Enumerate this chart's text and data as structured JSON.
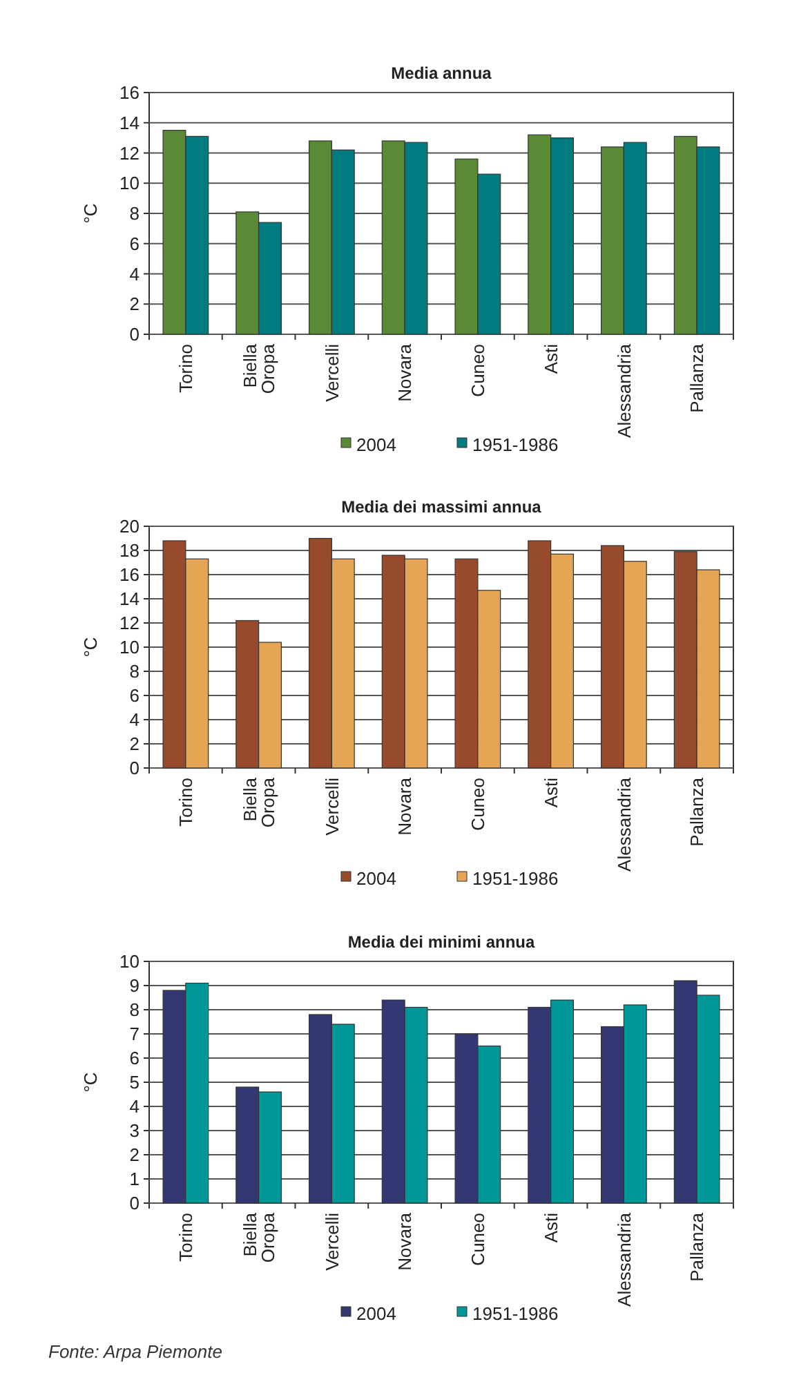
{
  "chart_data": [
    {
      "type": "bar",
      "title": "Media annua",
      "ylabel": "°C",
      "categories": [
        "Torino",
        "Biella\nOropa",
        "Vercelli",
        "Novara",
        "Cuneo",
        "Asti",
        "Alessandria",
        "Pallanza"
      ],
      "ylim": [
        0,
        16
      ],
      "yticks": [
        0,
        2,
        4,
        6,
        8,
        10,
        12,
        14,
        16
      ],
      "grid": "y",
      "legend": "bottom",
      "series": [
        {
          "name": "2004",
          "color": "#5a8a35",
          "values": [
            13.5,
            8.1,
            12.8,
            12.8,
            11.6,
            13.2,
            12.4,
            13.1
          ]
        },
        {
          "name": "1951-1986",
          "color": "#007b80",
          "values": [
            13.1,
            7.4,
            12.2,
            12.7,
            10.6,
            13.0,
            12.7,
            12.4
          ]
        }
      ]
    },
    {
      "type": "bar",
      "title": "Media dei massimi annua",
      "ylabel": "°C",
      "categories": [
        "Torino",
        "Biella\nOropa",
        "Vercelli",
        "Novara",
        "Cuneo",
        "Asti",
        "Alessandria",
        "Pallanza"
      ],
      "ylim": [
        0,
        20
      ],
      "yticks": [
        0,
        2,
        4,
        6,
        8,
        10,
        12,
        14,
        16,
        18,
        20
      ],
      "grid": "y",
      "legend": "bottom",
      "series": [
        {
          "name": "2004",
          "color": "#984b2c",
          "values": [
            18.8,
            12.2,
            19.0,
            17.6,
            17.3,
            18.8,
            18.4,
            17.9
          ]
        },
        {
          "name": "1951-1986",
          "color": "#e6a554",
          "values": [
            17.3,
            10.4,
            17.3,
            17.3,
            14.7,
            17.7,
            17.1,
            16.4
          ]
        }
      ]
    },
    {
      "type": "bar",
      "title": "Media dei minimi annua",
      "ylabel": "°C",
      "categories": [
        "Torino",
        "Biella\nOropa",
        "Vercelli",
        "Novara",
        "Cuneo",
        "Asti",
        "Alessandria",
        "Pallanza"
      ],
      "ylim": [
        0,
        10
      ],
      "yticks": [
        0,
        1,
        2,
        3,
        4,
        5,
        6,
        7,
        8,
        9,
        10
      ],
      "grid": "y",
      "legend": "bottom",
      "annotations": [
        "Fonte: Arpa Piemonte"
      ],
      "series": [
        {
          "name": "2004",
          "color": "#333872",
          "values": [
            8.8,
            4.8,
            7.8,
            8.4,
            7.0,
            8.1,
            7.3,
            9.2
          ]
        },
        {
          "name": "1951-1986",
          "color": "#009799",
          "values": [
            9.1,
            4.6,
            7.4,
            8.1,
            6.5,
            8.4,
            8.2,
            8.6
          ]
        }
      ]
    }
  ]
}
